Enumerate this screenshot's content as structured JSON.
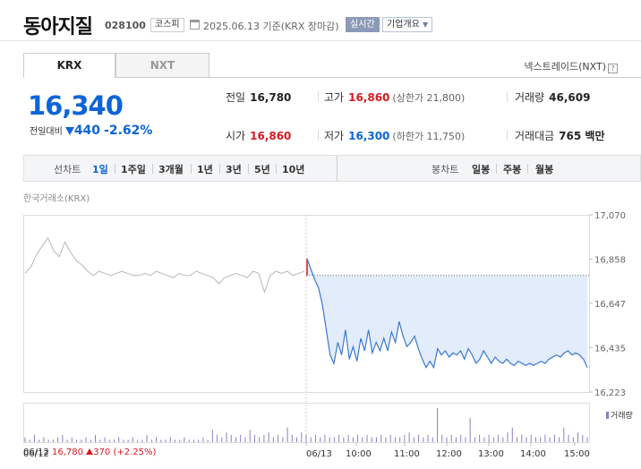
{
  "header": {
    "name": "동아지질",
    "code": "028100",
    "market": "코스피",
    "date_info": "2025.06.13 기준(KRX 장마감)",
    "realtime_label": "실시간",
    "company_info_label": "기업개요"
  },
  "tabs": {
    "krx": "KRX",
    "nxt": "NXT",
    "nxt_link": "넥스트레이드(NXT)"
  },
  "quote": {
    "price": "16,340",
    "change_label": "전일대비",
    "change_abs": "440",
    "change_pct": "-2.62%",
    "change_color": "#0c64d8"
  },
  "info": {
    "prev_label": "전일",
    "prev_value": "16,780",
    "high_label": "고가",
    "high_value": "16,860",
    "upper_limit": "(상한가 21,800)",
    "volume_label": "거래량",
    "volume_value": "46,609",
    "open_label": "시가",
    "open_value": "16,860",
    "low_label": "저가",
    "low_value": "16,300",
    "lower_limit": "(하한가 11,750)",
    "amount_label": "거래대금",
    "amount_value": "765 백만"
  },
  "period_bar": {
    "line_label": "선차트",
    "periods": [
      "1일",
      "1주일",
      "3개월",
      "1년",
      "3년",
      "5년",
      "10년"
    ],
    "selected": "1일",
    "candle_label": "봉차트",
    "candles": [
      "일봉",
      "주봉",
      "월봉"
    ]
  },
  "exchange_label": "한국거래소(KRX)",
  "chart_data": {
    "type": "line",
    "y_ticks": [
      "17,070",
      "16,858",
      "16,647",
      "16,435",
      "16,223"
    ],
    "ylim": [
      16223,
      17070
    ],
    "x_ticks_prev": [
      "06/12"
    ],
    "x_ticks": [
      "06/13",
      "10:00",
      "11:00",
      "12:00",
      "13:00",
      "14:00",
      "15:00"
    ],
    "prev_close": 16780,
    "prev_day_series": [
      16790,
      16820,
      16880,
      16920,
      16960,
      16900,
      16870,
      16940,
      16890,
      16850,
      16830,
      16800,
      16780,
      16800,
      16790,
      16780,
      16790,
      16800,
      16790,
      16780,
      16780,
      16790,
      16780,
      16800,
      16790,
      16780,
      16770,
      16790,
      16780,
      16780,
      16800,
      16790,
      16780,
      16770,
      16740,
      16770,
      16780,
      16790,
      16780,
      16770,
      16800,
      16790,
      16700,
      16780,
      16800,
      16790,
      16800,
      16780,
      16790,
      16800
    ],
    "today_series": [
      16860,
      16810,
      16760,
      16720,
      16640,
      16520,
      16400,
      16360,
      16460,
      16400,
      16520,
      16380,
      16440,
      16370,
      16480,
      16420,
      16520,
      16410,
      16460,
      16420,
      16480,
      16420,
      16510,
      16460,
      16560,
      16490,
      16440,
      16460,
      16490,
      16430,
      16380,
      16340,
      16370,
      16340,
      16430,
      16400,
      16420,
      16390,
      16410,
      16400,
      16420,
      16380,
      16430,
      16400,
      16360,
      16380,
      16420,
      16390,
      16360,
      16390,
      16370,
      16360,
      16380,
      16360,
      16350,
      16370,
      16360,
      16350,
      16360,
      16350,
      16360,
      16370,
      16360,
      16380,
      16390,
      16400,
      16390,
      16410,
      16420,
      16400,
      16410,
      16400,
      16380,
      16340
    ],
    "volume_series": [
      2,
      1,
      3,
      1,
      2,
      1,
      1,
      2,
      3,
      1,
      2,
      1,
      1,
      2,
      1,
      3,
      1,
      2,
      1,
      1,
      2,
      1,
      1,
      2,
      1,
      1,
      3,
      1,
      2,
      1,
      1,
      2,
      1,
      1,
      2,
      1,
      1,
      1,
      2,
      1,
      5,
      3,
      2,
      4,
      3,
      2,
      3,
      2,
      5,
      3,
      2,
      3,
      4,
      2,
      3,
      2,
      6,
      3,
      2,
      4,
      3,
      2,
      3,
      2,
      3,
      2,
      2,
      3,
      2,
      3,
      2,
      3,
      2,
      3,
      2,
      2,
      3,
      2,
      3,
      2,
      2,
      3,
      4,
      2,
      3,
      2,
      3,
      2,
      14,
      3,
      2,
      3,
      2,
      3,
      2,
      10,
      2,
      3,
      2,
      3,
      2,
      3,
      2,
      4,
      6,
      2,
      3,
      2,
      3,
      2,
      2,
      3,
      2,
      3,
      2,
      6,
      3,
      2,
      4,
      3,
      2
    ],
    "volume_legend": "거래량",
    "prev_day_summary": {
      "date": "06/12",
      "close": "16,780",
      "change": "370",
      "pct": "(+2.25%)"
    }
  },
  "colors": {
    "up": "#d71920",
    "down": "#0c64d8",
    "line": "#3a78d4",
    "fill": "#e3ecfa",
    "prev_line": "#b8b8b8"
  }
}
